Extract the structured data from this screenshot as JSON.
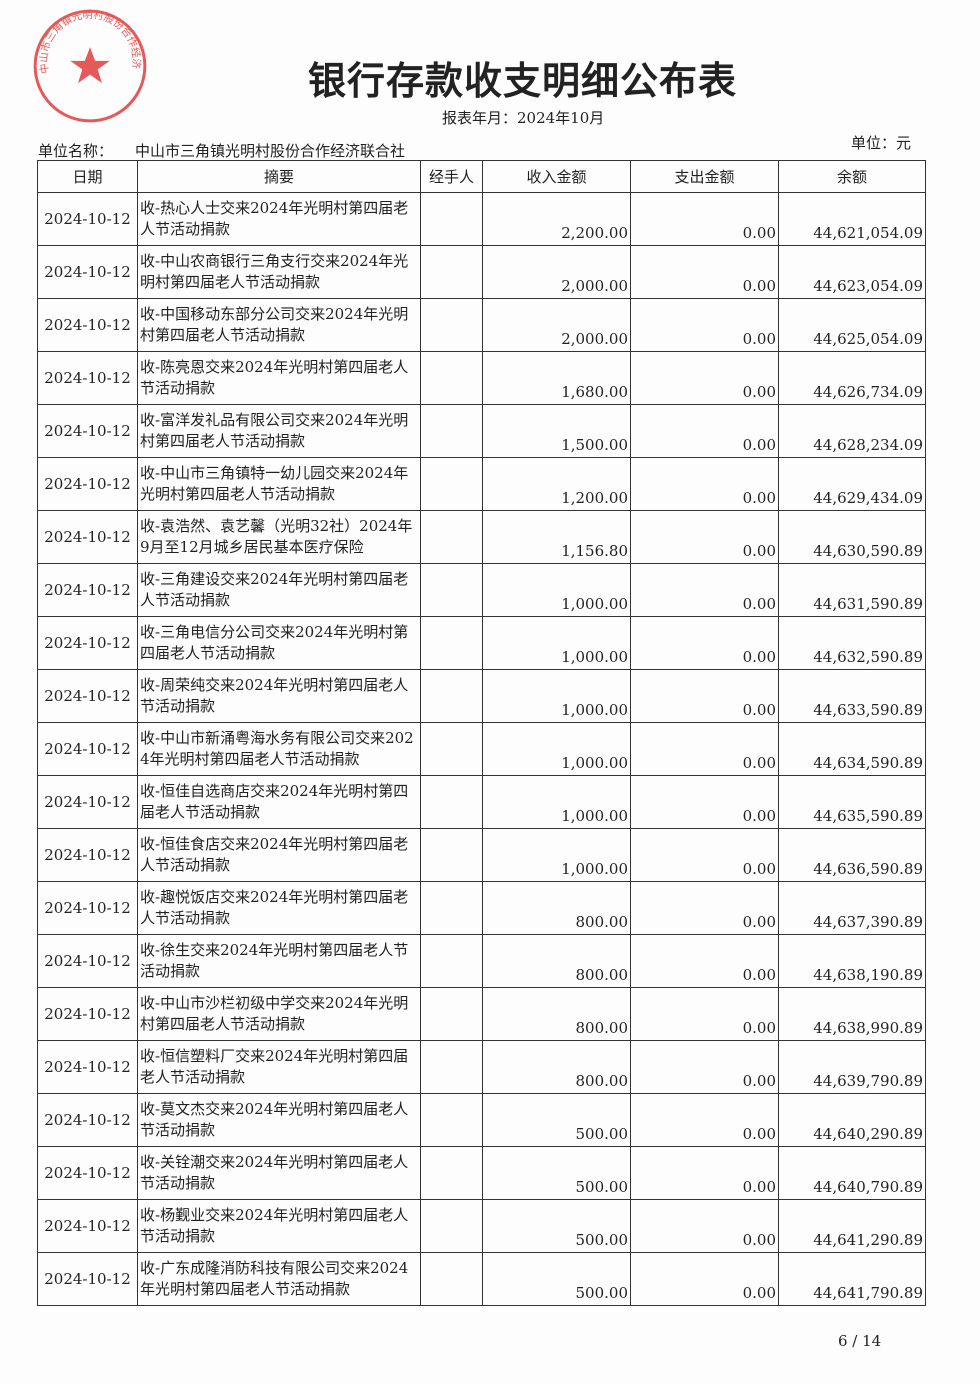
{
  "title": "银行存款收支明细公布表",
  "period_label": "报表年月：2024年10月",
  "unit_name_label": "单位名称：",
  "unit_name": "中山市三角镇光明村股份合作经济联合社",
  "unit_label": "单位：元",
  "stamp_text": "中山市三角镇光明村股份合作经济联合社",
  "stamp_color": "#e0322f",
  "columns": [
    "日期",
    "摘要",
    "经手人",
    "收入金额",
    "支出金额",
    "余额"
  ],
  "rows": [
    {
      "date": "2024-10-12",
      "summary": "收-热心人士交来2024年光明村第四届老人节活动捐款",
      "handler": "",
      "income": "2,200.00",
      "expense": "0.00",
      "balance": "44,621,054.09"
    },
    {
      "date": "2024-10-12",
      "summary": "收-中山农商银行三角支行交来2024年光明村第四届老人节活动捐款",
      "handler": "",
      "income": "2,000.00",
      "expense": "0.00",
      "balance": "44,623,054.09"
    },
    {
      "date": "2024-10-12",
      "summary": "收-中国移动东部分公司交来2024年光明村第四届老人节活动捐款",
      "handler": "",
      "income": "2,000.00",
      "expense": "0.00",
      "balance": "44,625,054.09"
    },
    {
      "date": "2024-10-12",
      "summary": "收-陈亮恩交来2024年光明村第四届老人节活动捐款",
      "handler": "",
      "income": "1,680.00",
      "expense": "0.00",
      "balance": "44,626,734.09"
    },
    {
      "date": "2024-10-12",
      "summary": "收-富洋发礼品有限公司交来2024年光明村第四届老人节活动捐款",
      "handler": "",
      "income": "1,500.00",
      "expense": "0.00",
      "balance": "44,628,234.09"
    },
    {
      "date": "2024-10-12",
      "summary": "收-中山市三角镇特一幼儿园交来2024年光明村第四届老人节活动捐款",
      "handler": "",
      "income": "1,200.00",
      "expense": "0.00",
      "balance": "44,629,434.09"
    },
    {
      "date": "2024-10-12",
      "summary": "收-袁浩然、袁艺馨（光明32社）2024年9月至12月城乡居民基本医疗保险",
      "handler": "",
      "income": "1,156.80",
      "expense": "0.00",
      "balance": "44,630,590.89"
    },
    {
      "date": "2024-10-12",
      "summary": "收-三角建设交来2024年光明村第四届老人节活动捐款",
      "handler": "",
      "income": "1,000.00",
      "expense": "0.00",
      "balance": "44,631,590.89"
    },
    {
      "date": "2024-10-12",
      "summary": "收-三角电信分公司交来2024年光明村第四届老人节活动捐款",
      "handler": "",
      "income": "1,000.00",
      "expense": "0.00",
      "balance": "44,632,590.89"
    },
    {
      "date": "2024-10-12",
      "summary": "收-周荣纯交来2024年光明村第四届老人节活动捐款",
      "handler": "",
      "income": "1,000.00",
      "expense": "0.00",
      "balance": "44,633,590.89"
    },
    {
      "date": "2024-10-12",
      "summary": "收-中山市新涌粤海水务有限公司交来2024年光明村第四届老人节活动捐款",
      "handler": "",
      "income": "1,000.00",
      "expense": "0.00",
      "balance": "44,634,590.89"
    },
    {
      "date": "2024-10-12",
      "summary": "收-恒佳自选商店交来2024年光明村第四届老人节活动捐款",
      "handler": "",
      "income": "1,000.00",
      "expense": "0.00",
      "balance": "44,635,590.89"
    },
    {
      "date": "2024-10-12",
      "summary": "收-恒佳食店交来2024年光明村第四届老人节活动捐款",
      "handler": "",
      "income": "1,000.00",
      "expense": "0.00",
      "balance": "44,636,590.89"
    },
    {
      "date": "2024-10-12",
      "summary": "收-趣悦饭店交来2024年光明村第四届老人节活动捐款",
      "handler": "",
      "income": "800.00",
      "expense": "0.00",
      "balance": "44,637,390.89"
    },
    {
      "date": "2024-10-12",
      "summary": "收-徐生交来2024年光明村第四届老人节活动捐款",
      "handler": "",
      "income": "800.00",
      "expense": "0.00",
      "balance": "44,638,190.89"
    },
    {
      "date": "2024-10-12",
      "summary": "收-中山市沙栏初级中学交来2024年光明村第四届老人节活动捐款",
      "handler": "",
      "income": "800.00",
      "expense": "0.00",
      "balance": "44,638,990.89"
    },
    {
      "date": "2024-10-12",
      "summary": "收-恒信塑料厂交来2024年光明村第四届老人节活动捐款",
      "handler": "",
      "income": "800.00",
      "expense": "0.00",
      "balance": "44,639,790.89"
    },
    {
      "date": "2024-10-12",
      "summary": "收-莫文杰交来2024年光明村第四届老人节活动捐款",
      "handler": "",
      "income": "500.00",
      "expense": "0.00",
      "balance": "44,640,290.89"
    },
    {
      "date": "2024-10-12",
      "summary": "收-关铨潮交来2024年光明村第四届老人节活动捐款",
      "handler": "",
      "income": "500.00",
      "expense": "0.00",
      "balance": "44,640,790.89"
    },
    {
      "date": "2024-10-12",
      "summary": "收-杨觐业交来2024年光明村第四届老人节活动捐款",
      "handler": "",
      "income": "500.00",
      "expense": "0.00",
      "balance": "44,641,290.89"
    },
    {
      "date": "2024-10-12",
      "summary": "收-广东成隆消防科技有限公司交来2024年光明村第四届老人节活动捐款",
      "handler": "",
      "income": "500.00",
      "expense": "0.00",
      "balance": "44,641,790.89"
    }
  ],
  "page_indicator": "6 / 14"
}
